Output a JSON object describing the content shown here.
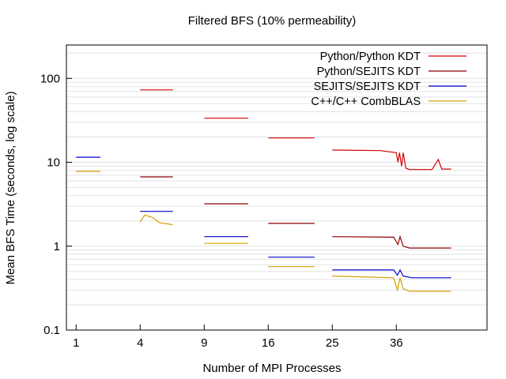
{
  "chart_data": {
    "type": "line",
    "title": "Filtered BFS (10% permeability)",
    "xlabel": "Number of MPI Processes",
    "ylabel": "Mean BFS Time (seconds, log scale)",
    "y_scale": "log",
    "ylim": [
      0.1,
      250
    ],
    "y_ticks": [
      {
        "value": 0.1,
        "label": "0.1"
      },
      {
        "value": 1,
        "label": "1"
      },
      {
        "value": 10,
        "label": "10"
      },
      {
        "value": 100,
        "label": "100"
      }
    ],
    "x_ticks": [
      {
        "value": 1,
        "label": "1"
      },
      {
        "value": 4,
        "label": "4"
      },
      {
        "value": 9,
        "label": "9"
      },
      {
        "value": 16,
        "label": "16"
      },
      {
        "value": 25,
        "label": "25"
      },
      {
        "value": 36,
        "label": "36"
      }
    ],
    "legend_position": "top-right",
    "grid": "horizontal",
    "series": [
      {
        "name": "Python/Python KDT",
        "color": "#d40000",
        "segments": [
          [
            [
              4,
              73
            ],
            [
              6.3,
              73
            ]
          ],
          [
            [
              9,
              33.5
            ],
            [
              13.6,
              33.5
            ]
          ],
          [
            [
              16,
              19.5
            ],
            [
              22.3,
              19.5
            ]
          ],
          [
            [
              25,
              14
            ],
            [
              33,
              13.8
            ],
            [
              36,
              13
            ],
            [
              36.3,
              10
            ],
            [
              36.6,
              13
            ],
            [
              37,
              9
            ],
            [
              37.3,
              13
            ],
            [
              37.8,
              8.5
            ],
            [
              38.5,
              8.2
            ],
            [
              43,
              8.2
            ],
            [
              44.3,
              10.8
            ],
            [
              45,
              8.3
            ],
            [
              47,
              8.3
            ]
          ]
        ]
      },
      {
        "name": "Python/SEJITS KDT",
        "color": "#8b0000",
        "segments": [
          [
            [
              4,
              6.7
            ],
            [
              6.3,
              6.7
            ]
          ],
          [
            [
              9,
              3.2
            ],
            [
              13.6,
              3.2
            ]
          ],
          [
            [
              16,
              1.87
            ],
            [
              22.3,
              1.87
            ]
          ],
          [
            [
              25,
              1.3
            ],
            [
              35.5,
              1.28
            ],
            [
              36.3,
              1.05
            ],
            [
              36.7,
              1.3
            ],
            [
              37.3,
              1.0
            ],
            [
              38.5,
              0.95
            ],
            [
              47,
              0.95
            ]
          ]
        ]
      },
      {
        "name": "SEJITS/SEJITS KDT",
        "color": "#0000cc",
        "segments": [
          [
            [
              1,
              11.5
            ],
            [
              1.9,
              11.5
            ]
          ],
          [
            [
              4,
              2.6
            ],
            [
              6.3,
              2.6
            ]
          ],
          [
            [
              9,
              1.3
            ],
            [
              13.6,
              1.3
            ]
          ],
          [
            [
              16,
              0.74
            ],
            [
              22.3,
              0.74
            ]
          ],
          [
            [
              25,
              0.52
            ],
            [
              35.5,
              0.52
            ],
            [
              36.2,
              0.45
            ],
            [
              36.7,
              0.52
            ],
            [
              37.3,
              0.44
            ],
            [
              39,
              0.42
            ],
            [
              47,
              0.42
            ]
          ]
        ]
      },
      {
        "name": "C++/C++ CombBLAS",
        "color": "#d4a000",
        "segments": [
          [
            [
              1,
              7.8
            ],
            [
              1.9,
              7.8
            ]
          ],
          [
            [
              4,
              1.95
            ],
            [
              4.3,
              2.35
            ],
            [
              4.8,
              2.2
            ],
            [
              5.3,
              1.9
            ],
            [
              6.3,
              1.8
            ]
          ],
          [
            [
              9,
              1.08
            ],
            [
              13.6,
              1.08
            ]
          ],
          [
            [
              16,
              0.57
            ],
            [
              22.3,
              0.57
            ]
          ],
          [
            [
              25,
              0.44
            ],
            [
              35.5,
              0.42
            ],
            [
              36.2,
              0.3
            ],
            [
              36.7,
              0.42
            ],
            [
              37.3,
              0.31
            ],
            [
              38.5,
              0.29
            ],
            [
              47,
              0.29
            ]
          ]
        ]
      }
    ]
  }
}
